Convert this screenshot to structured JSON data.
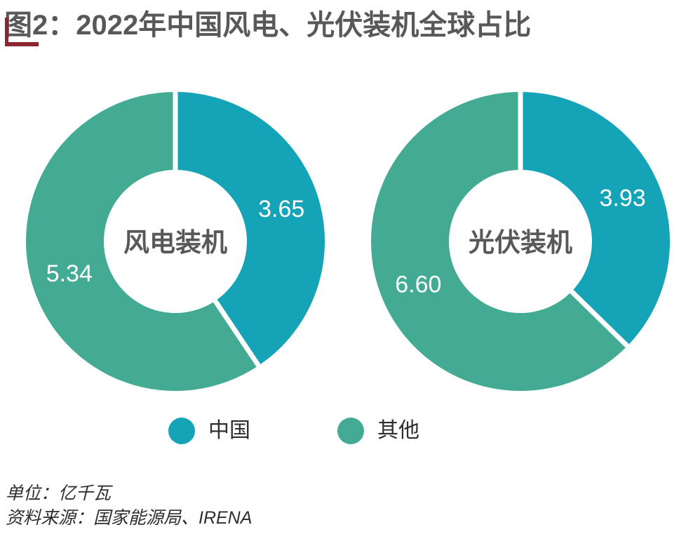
{
  "title": "图2：2022年中国风电、光伏装机全球占比",
  "colors": {
    "china": "#14A3B7",
    "other": "#43AB93",
    "title_text": "#57585A",
    "accent_red": "#8B2630",
    "value_text": "#FFFFFF",
    "center_text": "#58585A"
  },
  "chart_data": [
    {
      "type": "pie",
      "subtype": "donut",
      "title": "风电装机",
      "center_label": "风电装机",
      "unit": "亿千瓦",
      "start_angle_deg": 0,
      "direction": "clockwise",
      "slices": [
        {
          "name": "中国",
          "value": 3.65,
          "color_key": "china"
        },
        {
          "name": "其他",
          "value": 5.34,
          "color_key": "other"
        }
      ]
    },
    {
      "type": "pie",
      "subtype": "donut",
      "title": "光伏装机",
      "center_label": "光伏装机",
      "unit": "亿千瓦",
      "start_angle_deg": 0,
      "direction": "clockwise",
      "slices": [
        {
          "name": "中国",
          "value": 3.93,
          "color_key": "china"
        },
        {
          "name": "其他",
          "value": 6.6,
          "color_key": "other"
        }
      ]
    }
  ],
  "legend": {
    "items": [
      {
        "label": "中国",
        "color_key": "china"
      },
      {
        "label": "其他",
        "color_key": "other"
      }
    ]
  },
  "footer": {
    "unit_line": "单位：亿千瓦",
    "source_line": "资料来源：国家能源局、IRENA"
  }
}
